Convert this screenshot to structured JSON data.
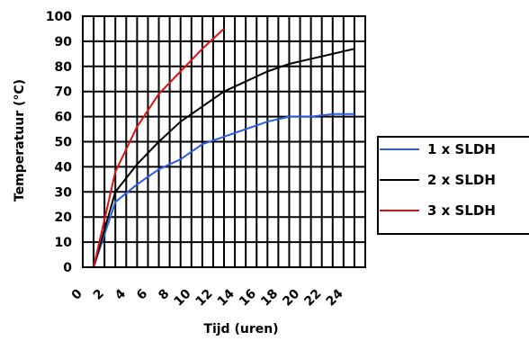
{
  "chart_data": {
    "type": "line",
    "title": "",
    "xlabel": "Tijd (uren)",
    "ylabel": "Temperatuur (°C)",
    "xlim": [
      0,
      26
    ],
    "ylim": [
      0,
      100
    ],
    "x_ticks": [
      0,
      2,
      4,
      6,
      8,
      10,
      12,
      14,
      16,
      18,
      20,
      22,
      24
    ],
    "y_ticks": [
      0,
      10,
      20,
      30,
      40,
      50,
      60,
      70,
      80,
      90,
      100
    ],
    "grid": true,
    "legend_position": "right",
    "series": [
      {
        "name": "1 x SLDH",
        "color": "#2b5ce6",
        "points": [
          [
            1,
            0
          ],
          [
            3,
            26
          ],
          [
            5,
            33
          ],
          [
            7,
            39
          ],
          [
            9,
            43
          ],
          [
            11,
            49
          ],
          [
            13,
            52
          ],
          [
            15,
            55
          ],
          [
            17,
            58
          ],
          [
            19,
            60
          ],
          [
            21,
            60
          ],
          [
            23,
            61
          ],
          [
            25,
            61
          ]
        ]
      },
      {
        "name": "2 x SLDH",
        "color": "#000000",
        "points": [
          [
            1,
            0
          ],
          [
            3,
            30
          ],
          [
            5,
            41
          ],
          [
            7,
            50
          ],
          [
            9,
            58
          ],
          [
            11,
            64
          ],
          [
            13,
            70
          ],
          [
            15,
            74
          ],
          [
            17,
            78
          ],
          [
            19,
            81
          ],
          [
            21,
            83
          ],
          [
            23,
            85
          ],
          [
            25,
            87
          ]
        ]
      },
      {
        "name": "3 x SLDH",
        "color": "#e01010",
        "points": [
          [
            1,
            0
          ],
          [
            3,
            38
          ],
          [
            5,
            56
          ],
          [
            7,
            69
          ],
          [
            9,
            78
          ],
          [
            11,
            87
          ],
          [
            13,
            95
          ]
        ]
      }
    ]
  }
}
